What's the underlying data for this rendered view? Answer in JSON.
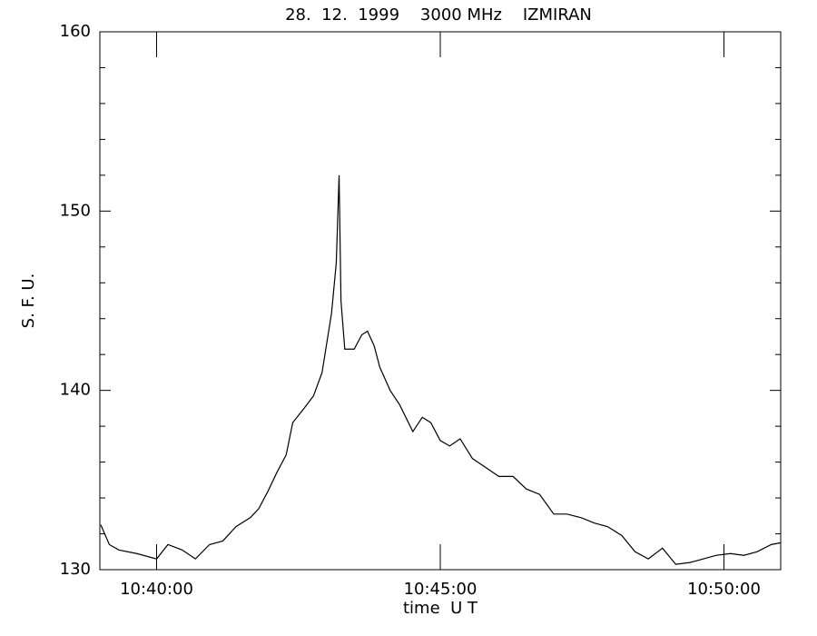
{
  "chart_data": {
    "type": "line",
    "title": "28.  12.  1999    3000 MHz    IZMIRAN",
    "xlabel": "time  U T",
    "ylabel": "S. F. U.",
    "color": "#000000",
    "x": [
      "10:39:01",
      "10:39:10",
      "10:39:20",
      "10:39:39",
      "10:40:00",
      "10:40:12",
      "10:40:27",
      "10:40:41",
      "10:40:56",
      "10:41:10",
      "10:41:24",
      "10:41:39",
      "10:41:48",
      "10:41:58",
      "10:42:07",
      "10:42:17",
      "10:42:24",
      "10:42:36",
      "10:42:46",
      "10:42:55",
      "10:43:05",
      "10:43:10",
      "10:43:13",
      "10:43:15",
      "10:43:19",
      "10:43:29",
      "10:43:37",
      "10:43:43",
      "10:43:50",
      "10:43:56",
      "10:44:07",
      "10:44:17",
      "10:44:31",
      "10:44:41",
      "10:44:50",
      "10:45:00",
      "10:45:10",
      "10:45:21",
      "10:45:34",
      "10:45:48",
      "10:46:02",
      "10:46:17",
      "10:46:31",
      "10:46:45",
      "10:47:00",
      "10:47:14",
      "10:47:29",
      "10:47:43",
      "10:47:57",
      "10:48:12",
      "10:48:26",
      "10:48:40",
      "10:48:55",
      "10:49:09",
      "10:49:24",
      "10:49:38",
      "10:49:52",
      "10:50:07",
      "10:50:21",
      "10:50:35",
      "10:50:50",
      "10:51:00"
    ],
    "values": [
      132.5,
      131.4,
      131.1,
      130.9,
      130.6,
      131.4,
      131.1,
      130.6,
      131.4,
      131.6,
      132.4,
      132.9,
      133.4,
      134.4,
      135.4,
      136.4,
      138.2,
      139.0,
      139.7,
      141.0,
      144.3,
      147.1,
      152.0,
      145.0,
      142.3,
      142.3,
      143.1,
      143.3,
      142.5,
      141.3,
      140.0,
      139.2,
      137.7,
      138.5,
      138.2,
      137.2,
      136.9,
      137.3,
      136.2,
      135.7,
      135.2,
      135.2,
      134.5,
      134.2,
      133.1,
      133.1,
      132.9,
      132.6,
      132.4,
      131.9,
      131.0,
      130.6,
      131.2,
      130.3,
      130.4,
      130.6,
      130.8,
      130.9,
      130.8,
      131.0,
      131.4,
      131.5
    ],
    "xlim": [
      "10:39:00",
      "10:51:00"
    ],
    "xticks": [
      "10:40:00",
      "10:45:00",
      "10:50:00"
    ],
    "ylim": [
      130,
      160
    ],
    "yticks": [
      130,
      140,
      150,
      160
    ],
    "yminorticks": [
      132,
      134,
      136,
      138,
      142,
      144,
      146,
      148,
      152,
      154,
      156,
      158
    ],
    "grid": false
  }
}
